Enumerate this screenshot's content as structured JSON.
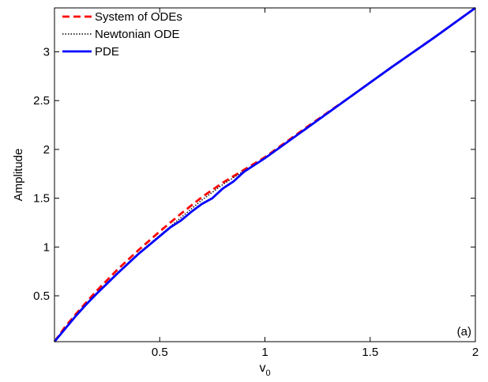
{
  "chart_data": {
    "type": "line",
    "title": "",
    "xlabel": "v",
    "xlabel_subscript": "0",
    "ylabel": "Amplitude",
    "panel_label": "(a)",
    "xlim": [
      0,
      2
    ],
    "ylim": [
      0.03,
      3.45
    ],
    "xticks": [
      0.5,
      1,
      1.5,
      2
    ],
    "yticks": [
      0.5,
      1,
      1.5,
      2,
      2.5,
      3
    ],
    "grid": false,
    "legend_position": "top-left",
    "series": [
      {
        "name": "System of ODEs",
        "color": "#ff0000",
        "dash": "dashed",
        "x": [
          0,
          0.05,
          0.1,
          0.15,
          0.2,
          0.3,
          0.4,
          0.5,
          0.6,
          0.7,
          0.8,
          0.9,
          1.0,
          1.2,
          1.4,
          1.6,
          1.8,
          2.0
        ],
        "y": [
          0.03,
          0.18,
          0.31,
          0.43,
          0.55,
          0.77,
          0.97,
          1.16,
          1.34,
          1.51,
          1.66,
          1.79,
          1.92,
          2.23,
          2.53,
          2.84,
          3.14,
          3.45
        ]
      },
      {
        "name": "Newtonian ODE",
        "color": "#000000",
        "dash": "dotted",
        "x": [
          0,
          0.05,
          0.1,
          0.15,
          0.2,
          0.3,
          0.4,
          0.5,
          0.6,
          0.7,
          0.8,
          0.9,
          1.0,
          1.2,
          1.4,
          1.6,
          1.8,
          2.0
        ],
        "y": [
          0.03,
          0.17,
          0.3,
          0.42,
          0.53,
          0.74,
          0.94,
          1.12,
          1.3,
          1.48,
          1.64,
          1.78,
          1.91,
          2.22,
          2.53,
          2.84,
          3.14,
          3.45
        ]
      },
      {
        "name": "PDE",
        "color": "#0000ff",
        "dash": "solid",
        "x": [
          0,
          0.05,
          0.1,
          0.15,
          0.2,
          0.3,
          0.4,
          0.5,
          0.55,
          0.6,
          0.65,
          0.7,
          0.75,
          0.8,
          0.85,
          0.9,
          1.0,
          1.2,
          1.4,
          1.6,
          1.8,
          2.0
        ],
        "y": [
          0.03,
          0.16,
          0.29,
          0.41,
          0.52,
          0.73,
          0.93,
          1.11,
          1.2,
          1.27,
          1.36,
          1.44,
          1.5,
          1.6,
          1.67,
          1.77,
          1.91,
          2.22,
          2.53,
          2.84,
          3.14,
          3.45
        ]
      }
    ]
  }
}
